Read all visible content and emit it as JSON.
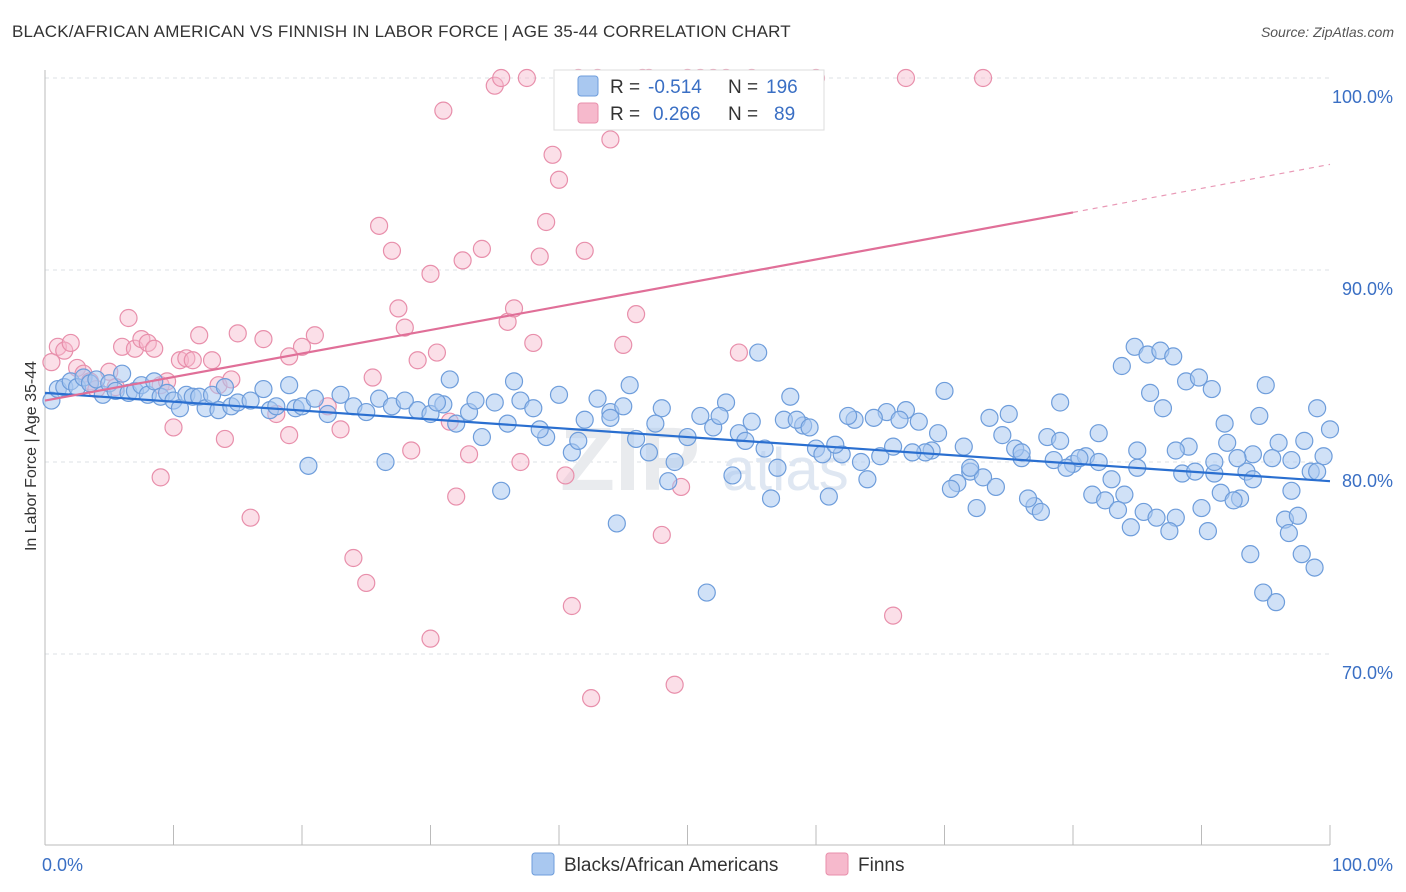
{
  "header": {
    "title": "BLACK/AFRICAN AMERICAN VS FINNISH IN LABOR FORCE | AGE 35-44 CORRELATION CHART",
    "source": "Source: ZipAtlas.com"
  },
  "chart_data": {
    "type": "scatter",
    "ylabel": "In Labor Force | Age 35-44",
    "xlim": [
      0,
      100
    ],
    "ylim": [
      60,
      104
    ],
    "x_tick_labels": [
      "0.0%",
      "100.0%"
    ],
    "y_ticks": [
      {
        "value": 100,
        "label": "100.0%"
      },
      {
        "value": 90,
        "label": "90.0%"
      },
      {
        "value": 80,
        "label": "80.0%"
      },
      {
        "value": 70,
        "label": "70.0%"
      }
    ],
    "grid": true,
    "legend_placement": "top-center",
    "colors": {
      "blue_fill": "#a9c8f0",
      "blue_stroke": "#6e9ddb",
      "blue_line": "#2a6fd0",
      "pink_fill": "#f6b9cc",
      "pink_stroke": "#e88fab",
      "pink_line": "#e06f98"
    },
    "stats": [
      {
        "r_label": "R =",
        "r": "-0.514",
        "n_label": "N =",
        "n": "196"
      },
      {
        "r_label": "R =",
        "r": "0.266",
        "n_label": "N =",
        "n": "89"
      }
    ],
    "series": [
      {
        "name": "Blacks/African Americans",
        "trend": {
          "x0": 0,
          "y0": 83.6,
          "x1": 100,
          "y1": 79.0
        },
        "points": [
          [
            0.5,
            83.2
          ],
          [
            1,
            83.8
          ],
          [
            1.5,
            83.9
          ],
          [
            2,
            84.2
          ],
          [
            2.5,
            83.9
          ],
          [
            3,
            84.4
          ],
          [
            3.5,
            84.1
          ],
          [
            4,
            84.3
          ],
          [
            4.5,
            83.5
          ],
          [
            5,
            84.1
          ],
          [
            5.5,
            83.7
          ],
          [
            6,
            84.6
          ],
          [
            6.5,
            83.6
          ],
          [
            7,
            83.7
          ],
          [
            7.5,
            84.0
          ],
          [
            8,
            83.5
          ],
          [
            8.5,
            84.2
          ],
          [
            9,
            83.4
          ],
          [
            9.5,
            83.6
          ],
          [
            10,
            83.2
          ],
          [
            10.5,
            82.8
          ],
          [
            11,
            83.5
          ],
          [
            11.5,
            83.4
          ],
          [
            12,
            83.4
          ],
          [
            12.5,
            82.8
          ],
          [
            13,
            83.5
          ],
          [
            13.5,
            82.7
          ],
          [
            14,
            83.9
          ],
          [
            14.5,
            82.9
          ],
          [
            15,
            83.1
          ],
          [
            16,
            83.2
          ],
          [
            17,
            83.8
          ],
          [
            17.5,
            82.7
          ],
          [
            18,
            82.9
          ],
          [
            19,
            84.0
          ],
          [
            19.5,
            82.8
          ],
          [
            20,
            82.9
          ],
          [
            21,
            83.3
          ],
          [
            22,
            82.5
          ],
          [
            23,
            83.5
          ],
          [
            24,
            82.9
          ],
          [
            25,
            82.6
          ],
          [
            26,
            83.3
          ],
          [
            27,
            82.9
          ],
          [
            28,
            83.2
          ],
          [
            29,
            82.7
          ],
          [
            30,
            82.5
          ],
          [
            31,
            83.0
          ],
          [
            32,
            82.0
          ],
          [
            33,
            82.6
          ],
          [
            34,
            81.3
          ],
          [
            35,
            83.1
          ],
          [
            36,
            82.0
          ],
          [
            37,
            83.2
          ],
          [
            38,
            82.8
          ],
          [
            39,
            81.3
          ],
          [
            40,
            83.5
          ],
          [
            41,
            80.5
          ],
          [
            42,
            82.2
          ],
          [
            43,
            83.3
          ],
          [
            44,
            82.6
          ],
          [
            45,
            82.9
          ],
          [
            46,
            81.2
          ],
          [
            47,
            80.5
          ],
          [
            48,
            82.8
          ],
          [
            49,
            80.0
          ],
          [
            50,
            81.3
          ],
          [
            51,
            82.4
          ],
          [
            52,
            81.8
          ],
          [
            53,
            83.1
          ],
          [
            54,
            81.5
          ],
          [
            55,
            82.1
          ],
          [
            56,
            80.7
          ],
          [
            57,
            79.7
          ],
          [
            58,
            83.4
          ],
          [
            59,
            81.9
          ],
          [
            60,
            80.7
          ],
          [
            61,
            78.2
          ],
          [
            62,
            80.4
          ],
          [
            63,
            82.2
          ],
          [
            64,
            79.1
          ],
          [
            65,
            80.3
          ],
          [
            66,
            80.8
          ],
          [
            67,
            82.7
          ],
          [
            68,
            82.1
          ],
          [
            69,
            80.6
          ],
          [
            70,
            83.7
          ],
          [
            71,
            78.9
          ],
          [
            72,
            79.5
          ],
          [
            73,
            79.2
          ],
          [
            74,
            78.7
          ],
          [
            75,
            82.5
          ],
          [
            76,
            80.2
          ],
          [
            77,
            77.7
          ],
          [
            78,
            81.3
          ],
          [
            79,
            83.1
          ],
          [
            80,
            79.9
          ],
          [
            81,
            80.3
          ],
          [
            82,
            81.5
          ],
          [
            83,
            79.1
          ],
          [
            84,
            78.3
          ],
          [
            85,
            80.6
          ],
          [
            86,
            83.6
          ],
          [
            87,
            82.8
          ],
          [
            88,
            77.1
          ],
          [
            89,
            80.8
          ],
          [
            90,
            77.6
          ],
          [
            91,
            79.4
          ],
          [
            92,
            81.0
          ],
          [
            93,
            78.1
          ],
          [
            94,
            80.4
          ],
          [
            95,
            84.0
          ],
          [
            96,
            81.0
          ],
          [
            97,
            78.5
          ],
          [
            98,
            81.1
          ],
          [
            99,
            82.8
          ],
          [
            100,
            81.7
          ],
          [
            20.5,
            79.8
          ],
          [
            31.5,
            84.3
          ],
          [
            33.5,
            83.2
          ],
          [
            36.5,
            84.2
          ],
          [
            45.5,
            84.0
          ],
          [
            48.5,
            79.0
          ],
          [
            52.5,
            82.4
          ],
          [
            55.5,
            85.7
          ],
          [
            57.5,
            82.2
          ],
          [
            58.5,
            82.2
          ],
          [
            62.5,
            82.4
          ],
          [
            65.5,
            82.6
          ],
          [
            66.5,
            82.2
          ],
          [
            68.5,
            80.5
          ],
          [
            70.5,
            78.6
          ],
          [
            73.5,
            82.3
          ],
          [
            74.5,
            81.4
          ],
          [
            75.5,
            80.7
          ],
          [
            76.5,
            78.1
          ],
          [
            77.5,
            77.4
          ],
          [
            78.5,
            80.1
          ],
          [
            79.5,
            79.7
          ],
          [
            80.5,
            80.2
          ],
          [
            81.5,
            78.3
          ],
          [
            82.5,
            78.0
          ],
          [
            83.5,
            77.5
          ],
          [
            84.5,
            76.6
          ],
          [
            85.5,
            77.4
          ],
          [
            86.5,
            77.1
          ],
          [
            87.5,
            76.4
          ],
          [
            88.5,
            79.4
          ],
          [
            89.5,
            79.5
          ],
          [
            90.5,
            76.4
          ],
          [
            91.5,
            78.4
          ],
          [
            92.5,
            78.0
          ],
          [
            93.5,
            79.5
          ],
          [
            94.5,
            82.4
          ],
          [
            95.5,
            80.2
          ],
          [
            96.5,
            77.0
          ],
          [
            97.5,
            77.2
          ],
          [
            98.5,
            79.5
          ],
          [
            99.5,
            80.3
          ],
          [
            26.5,
            80.0
          ],
          [
            35.5,
            78.5
          ],
          [
            44.5,
            76.8
          ],
          [
            53.5,
            79.3
          ],
          [
            63.5,
            80.0
          ],
          [
            71.5,
            80.8
          ],
          [
            72.5,
            77.6
          ],
          [
            83.8,
            85.0
          ],
          [
            84.8,
            86.0
          ],
          [
            85.8,
            85.6
          ],
          [
            86.8,
            85.8
          ],
          [
            87.8,
            85.5
          ],
          [
            88.8,
            84.2
          ],
          [
            89.8,
            84.4
          ],
          [
            90.8,
            83.8
          ],
          [
            91.8,
            82.0
          ],
          [
            92.8,
            80.2
          ],
          [
            93.8,
            75.2
          ],
          [
            94.8,
            73.2
          ],
          [
            95.8,
            72.7
          ],
          [
            96.8,
            76.3
          ],
          [
            97.8,
            75.2
          ],
          [
            98.8,
            74.5
          ],
          [
            51.5,
            73.2
          ],
          [
            44,
            82.3
          ],
          [
            47.5,
            82.0
          ],
          [
            54.5,
            81.1
          ],
          [
            56.5,
            78.1
          ],
          [
            59.5,
            81.8
          ],
          [
            60.5,
            80.4
          ],
          [
            61.5,
            80.9
          ],
          [
            64.5,
            82.3
          ],
          [
            67.5,
            80.5
          ],
          [
            69.5,
            81.5
          ],
          [
            72,
            79.7
          ],
          [
            76,
            80.5
          ],
          [
            79,
            81.1
          ],
          [
            82,
            80.0
          ],
          [
            85,
            79.7
          ],
          [
            88,
            80.6
          ],
          [
            91,
            80.0
          ],
          [
            94,
            79.1
          ],
          [
            97,
            80.1
          ],
          [
            99,
            79.5
          ],
          [
            41.5,
            81.1
          ],
          [
            38.5,
            81.7
          ],
          [
            30.5,
            83.1
          ]
        ]
      },
      {
        "name": "Finns",
        "trend": {
          "x0": 0,
          "y0": 83.2,
          "x1": 80,
          "y1": 93.0,
          "dash_to_x": 100,
          "dash_to_y": 95.5
        },
        "points": [
          [
            0.5,
            85.2
          ],
          [
            1,
            86.0
          ],
          [
            1.5,
            85.8
          ],
          [
            2,
            86.2
          ],
          [
            2.5,
            84.9
          ],
          [
            3,
            84.6
          ],
          [
            3.5,
            84.2
          ],
          [
            4,
            83.8
          ],
          [
            5,
            84.7
          ],
          [
            5.5,
            83.9
          ],
          [
            6,
            86.0
          ],
          [
            6.5,
            87.5
          ],
          [
            7,
            85.9
          ],
          [
            7.5,
            86.4
          ],
          [
            8,
            86.2
          ],
          [
            8.5,
            85.9
          ],
          [
            9,
            84.0
          ],
          [
            9.5,
            84.2
          ],
          [
            10,
            81.8
          ],
          [
            10.5,
            85.3
          ],
          [
            11,
            85.4
          ],
          [
            11.5,
            85.3
          ],
          [
            12,
            86.6
          ],
          [
            13,
            85.3
          ],
          [
            13.5,
            84.0
          ],
          [
            14,
            81.2
          ],
          [
            14.5,
            84.3
          ],
          [
            15,
            86.7
          ],
          [
            16,
            77.1
          ],
          [
            17,
            86.4
          ],
          [
            18,
            82.5
          ],
          [
            19,
            81.4
          ],
          [
            20,
            86.0
          ],
          [
            21,
            86.6
          ],
          [
            22,
            82.9
          ],
          [
            23,
            81.7
          ],
          [
            24,
            75.0
          ],
          [
            25,
            73.7
          ],
          [
            25.5,
            84.4
          ],
          [
            26,
            92.3
          ],
          [
            27,
            91.0
          ],
          [
            27.5,
            88.0
          ],
          [
            28,
            87.0
          ],
          [
            28.5,
            80.6
          ],
          [
            29,
            85.3
          ],
          [
            30,
            89.8
          ],
          [
            30.5,
            85.7
          ],
          [
            31,
            98.3
          ],
          [
            31.5,
            82.1
          ],
          [
            32,
            78.2
          ],
          [
            32.5,
            90.5
          ],
          [
            33,
            80.4
          ],
          [
            34,
            91.1
          ],
          [
            35,
            99.6
          ],
          [
            35.5,
            100.0
          ],
          [
            36,
            87.3
          ],
          [
            36.5,
            88.0
          ],
          [
            37,
            80.0
          ],
          [
            37.5,
            100.0
          ],
          [
            38,
            86.2
          ],
          [
            38.5,
            90.7
          ],
          [
            39,
            92.5
          ],
          [
            39.5,
            96.0
          ],
          [
            40,
            94.7
          ],
          [
            40.5,
            79.3
          ],
          [
            41,
            72.5
          ],
          [
            41.5,
            100.0
          ],
          [
            42,
            91.0
          ],
          [
            42.5,
            67.7
          ],
          [
            43,
            100.0
          ],
          [
            44,
            96.8
          ],
          [
            45,
            86.1
          ],
          [
            46,
            87.7
          ],
          [
            46.5,
            100.0
          ],
          [
            47,
            100.0
          ],
          [
            48,
            76.2
          ],
          [
            49,
            68.4
          ],
          [
            49.5,
            78.7
          ],
          [
            50,
            100.0
          ],
          [
            51,
            100.0
          ],
          [
            52,
            100.0
          ],
          [
            53,
            100.0
          ],
          [
            54,
            85.7
          ],
          [
            55,
            100.0
          ],
          [
            60,
            100.0
          ],
          [
            66,
            72.0
          ],
          [
            67,
            100.0
          ],
          [
            73,
            100.0
          ],
          [
            9,
            79.2
          ],
          [
            19,
            85.5
          ],
          [
            30,
            70.8
          ]
        ]
      }
    ]
  },
  "watermark": "ZIPatlas"
}
